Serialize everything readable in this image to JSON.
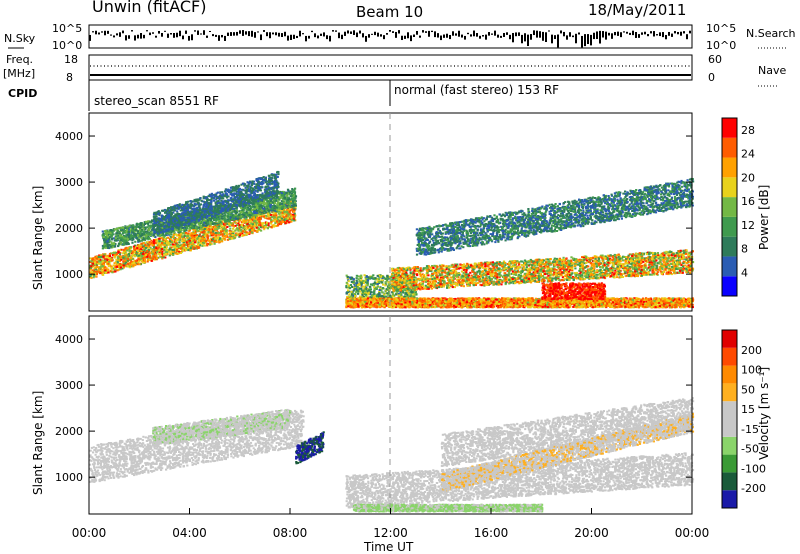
{
  "header": {
    "station": "Unwin (fitACF)",
    "beam": "Beam 10",
    "date": "18/May/2011"
  },
  "top_panels": {
    "nsky_label": "N.Sky",
    "nsky_ticks": [
      "10^5",
      "10^0"
    ],
    "nsearch_label": "N.Search",
    "freq_label": "Freq.",
    "freq_unit": "[MHz]",
    "freq_ticks": [
      "18",
      "8"
    ],
    "nave_label": "Nave",
    "nave_ticks": [
      "60",
      "0"
    ],
    "cpid_label": "CPID",
    "cpid_segments": [
      {
        "label": "stereo_scan 8551 RF",
        "start_hour": 0,
        "end_hour": 11.95
      },
      {
        "label": "normal (fast stereo) 153 RF",
        "start_hour": 11.95,
        "end_hour": 24
      }
    ]
  },
  "colors": {
    "power": [
      "#0a00ff",
      "#2a5cb3",
      "#2e7b5a",
      "#3f9a4e",
      "#73b845",
      "#e8d21c",
      "#ffa100",
      "#ff5c00",
      "#ff0000"
    ],
    "velocity": [
      "#1a1aa8",
      "#1a5a3a",
      "#3a9a35",
      "#8ad46a",
      "#c8c8c8",
      "#c8c8c8",
      "#ffb020",
      "#ff8a00",
      "#ff4a00",
      "#e00000"
    ]
  },
  "chart_data": [
    {
      "type": "heatmap",
      "title": "",
      "xlabel": "",
      "ylabel": "Slant Range [km]",
      "xlim": [
        0,
        24
      ],
      "ylim": [
        200,
        4500
      ],
      "yticks": [
        1000,
        2000,
        3000,
        4000
      ],
      "colorbar_label": "Power [dB]",
      "colorbar_ticks": [
        "4",
        "8",
        "12",
        "16",
        "20",
        "24",
        "28"
      ],
      "value_range": [
        0,
        30
      ],
      "scatter_regions": [
        {
          "x": [
            0,
            8.2
          ],
          "y_center": [
            1150,
            2400
          ],
          "y_width": 450,
          "value": [
            12,
            28
          ]
        },
        {
          "x": [
            0.5,
            8.2
          ],
          "y_center": [
            1750,
            2700
          ],
          "y_width": 400,
          "value": [
            6,
            16
          ]
        },
        {
          "x": [
            2.5,
            7.5
          ],
          "y_center": [
            2100,
            3000
          ],
          "y_width": 500,
          "value": [
            4,
            10
          ]
        },
        {
          "x": [
            10.2,
            13
          ],
          "y_center": [
            700,
            700
          ],
          "y_width": 600,
          "value": [
            6,
            20
          ]
        },
        {
          "x": [
            10.2,
            24
          ],
          "y_center": [
            400,
            400
          ],
          "y_width": 200,
          "value": [
            16,
            28
          ]
        },
        {
          "x": [
            12,
            24
          ],
          "y_center": [
            900,
            1300
          ],
          "y_width": 500,
          "value": [
            10,
            28
          ]
        },
        {
          "x": [
            13,
            24
          ],
          "y_center": [
            1700,
            2800
          ],
          "y_width": 600,
          "value": [
            4,
            12
          ]
        },
        {
          "x": [
            18,
            20.5
          ],
          "y_center": [
            650,
            650
          ],
          "y_width": 350,
          "value": [
            24,
            30
          ]
        }
      ]
    },
    {
      "type": "heatmap",
      "title": "",
      "xlabel": "Time UT",
      "ylabel": "Slant Range [km]",
      "xlim": [
        0,
        24
      ],
      "ylim": [
        200,
        4500
      ],
      "xticks": [
        "00:00",
        "04:00",
        "08:00",
        "12:00",
        "16:00",
        "20:00",
        "00:00"
      ],
      "yticks": [
        1000,
        2000,
        3000,
        4000
      ],
      "colorbar_label": "Velocity [m s⁻¹]",
      "colorbar_ticks": [
        "200",
        "100",
        "50",
        "15",
        "-15",
        "-50",
        "-100",
        "-200"
      ],
      "value_range": [
        -250,
        250
      ],
      "scatter_regions": [
        {
          "x": [
            0,
            8.5
          ],
          "y_center": [
            1300,
            2100
          ],
          "y_width": 800,
          "value": [
            -15,
            15
          ]
        },
        {
          "x": [
            2.5,
            8
          ],
          "y_center": [
            1900,
            2300
          ],
          "y_width": 400,
          "value": [
            -60,
            -20
          ]
        },
        {
          "x": [
            8.2,
            9.3
          ],
          "y_center": [
            1500,
            1800
          ],
          "y_width": 400,
          "value": [
            -250,
            -150
          ]
        },
        {
          "x": [
            10.2,
            24
          ],
          "y_center": [
            700,
            1200
          ],
          "y_width": 700,
          "value": [
            -15,
            15
          ]
        },
        {
          "x": [
            10.5,
            18
          ],
          "y_center": [
            350,
            350
          ],
          "y_width": 150,
          "value": [
            -80,
            -30
          ]
        },
        {
          "x": [
            14,
            24
          ],
          "y_center": [
            1600,
            2400
          ],
          "y_width": 700,
          "value": [
            -15,
            15
          ]
        },
        {
          "x": [
            14,
            24
          ],
          "y_center": [
            900,
            2200
          ],
          "y_width": 400,
          "value": [
            20,
            60
          ]
        }
      ]
    }
  ]
}
